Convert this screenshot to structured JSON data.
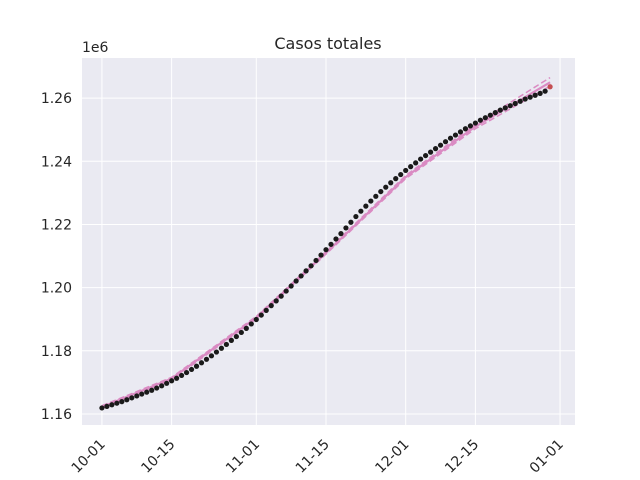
{
  "chart_data": {
    "type": "scatter-fit",
    "title": "Casos totales",
    "y_offset_label": "1e6",
    "grid": true,
    "ylim": [
      1.1565,
      1.2727
    ],
    "yticks": [
      1.16,
      1.18,
      {
        "value": 1.2,
        "label": "1.20"
      },
      1.22,
      1.24,
      1.26
    ],
    "xlim": [
      "09-27",
      "01-04"
    ],
    "xticks": [
      "10-01",
      "10-15",
      "11-01",
      "11-15",
      "12-01",
      "12-15",
      "01-01"
    ],
    "series": [
      {
        "style": "dots",
        "color": "#1a1a1a",
        "x": [
          "10-01",
          "10-02",
          "10-03",
          "10-04",
          "10-05",
          "10-06",
          "10-07",
          "10-08",
          "10-09",
          "10-10",
          "10-11",
          "10-12",
          "10-13",
          "10-14",
          "10-15",
          "10-16",
          "10-17",
          "10-18",
          "10-19",
          "10-20",
          "10-21",
          "10-22",
          "10-23",
          "10-24",
          "10-25",
          "10-26",
          "10-27",
          "10-28",
          "10-29",
          "10-30",
          "10-31",
          "11-01",
          "11-02",
          "11-03",
          "11-04",
          "11-05",
          "11-06",
          "11-07",
          "11-08",
          "11-09",
          "11-10",
          "11-11",
          "11-12",
          "11-13",
          "11-14",
          "11-15",
          "11-16",
          "11-17",
          "11-18",
          "11-19",
          "11-20",
          "11-21",
          "11-22",
          "11-23",
          "11-24",
          "11-25",
          "11-26",
          "11-27",
          "11-28",
          "11-29",
          "11-30",
          "12-01",
          "12-02",
          "12-03",
          "12-04",
          "12-05",
          "12-06",
          "12-07",
          "12-08",
          "12-09",
          "12-10",
          "12-11",
          "12-12",
          "12-13",
          "12-14",
          "12-15",
          "12-16",
          "12-17",
          "12-18",
          "12-19",
          "12-20",
          "12-21",
          "12-22",
          "12-23",
          "12-24",
          "12-25",
          "12-26",
          "12-27",
          "12-28",
          "12-29"
        ],
        "values": [
          1.1619,
          1.1624,
          1.1629,
          1.1634,
          1.1639,
          1.1645,
          1.1651,
          1.1657,
          1.1663,
          1.1669,
          1.1675,
          1.1682,
          1.1689,
          1.1697,
          1.1705,
          1.1713,
          1.1722,
          1.1731,
          1.1741,
          1.1751,
          1.1762,
          1.1773,
          1.1784,
          1.1796,
          1.1808,
          1.182,
          1.1833,
          1.1845,
          1.1858,
          1.1871,
          1.1885,
          1.1899,
          1.1913,
          1.1928,
          1.1943,
          1.1958,
          1.1973,
          1.1989,
          1.2005,
          1.2021,
          1.2037,
          1.2053,
          1.2069,
          1.2086,
          1.2103,
          1.212,
          1.2137,
          1.2154,
          1.2171,
          1.2189,
          1.2207,
          1.2225,
          1.2242,
          1.2258,
          1.2274,
          1.2289,
          1.2304,
          1.2318,
          1.2332,
          1.2345,
          1.2358,
          1.2371,
          1.2383,
          1.2395,
          1.2407,
          1.2418,
          1.2429,
          1.244,
          1.2451,
          1.2462,
          1.2473,
          1.2483,
          1.2493,
          1.2503,
          1.2512,
          1.2521,
          1.253,
          1.2538,
          1.2546,
          1.2554,
          1.2562,
          1.2569,
          1.2576,
          1.2583,
          1.259,
          1.2597,
          1.2603,
          1.2609,
          1.2615,
          1.2622
        ]
      },
      {
        "style": "dots",
        "color": "#c44e52",
        "x": [
          "12-30"
        ],
        "values": [
          1.2636
        ]
      },
      {
        "style": "line",
        "color": "#da8bc3",
        "x": [
          "10-01",
          "10-15",
          "11-01",
          "11-15",
          "12-01",
          "12-15",
          "12-30"
        ],
        "values": [
          1.1622,
          1.1712,
          1.1905,
          1.211,
          1.235,
          1.251,
          1.265
        ]
      },
      {
        "style": "dashed",
        "color": "#da8bc3",
        "x": [
          "10-01",
          "10-15",
          "11-01",
          "11-15",
          "12-01",
          "12-15",
          "12-30"
        ],
        "values": [
          1.1626,
          1.1716,
          1.1909,
          1.2114,
          1.2355,
          1.2517,
          1.2665
        ]
      },
      {
        "style": "dashed",
        "color": "#da8bc3",
        "x": [
          "10-01",
          "10-15",
          "11-01",
          "11-15",
          "12-01",
          "12-15",
          "12-30"
        ],
        "values": [
          1.1618,
          1.1708,
          1.1901,
          1.2106,
          1.2345,
          1.2503,
          1.2638
        ]
      }
    ]
  }
}
